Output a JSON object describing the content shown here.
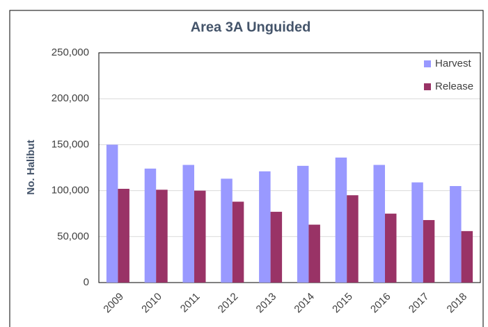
{
  "chart_data": {
    "type": "bar",
    "title": "Area 3A Unguided",
    "y_label": "No. Halibut",
    "categories": [
      "2009",
      "2010",
      "2011",
      "2012",
      "2013",
      "2014",
      "2015",
      "2016",
      "2017",
      "2018"
    ],
    "series": [
      {
        "name": "Harvest",
        "color": "#9999ff",
        "values": [
          150000,
          124000,
          128000,
          113000,
          121000,
          127000,
          136000,
          128000,
          109000,
          105000
        ]
      },
      {
        "name": "Release",
        "color": "#993366",
        "values": [
          102000,
          101000,
          100000,
          88000,
          77000,
          63000,
          95000,
          75000,
          68000,
          56000
        ]
      }
    ],
    "ylim": [
      0,
      250000
    ],
    "yticks": [
      0,
      {
        "value": 50000,
        "label": "50,000"
      },
      {
        "value": 100000,
        "label": "100,000"
      },
      {
        "value": 150000,
        "label": "150,000"
      },
      {
        "value": 200000,
        "label": "200,000"
      },
      {
        "value": 250000,
        "label": "250,000"
      }
    ],
    "grid": true,
    "legend": "top-right"
  }
}
